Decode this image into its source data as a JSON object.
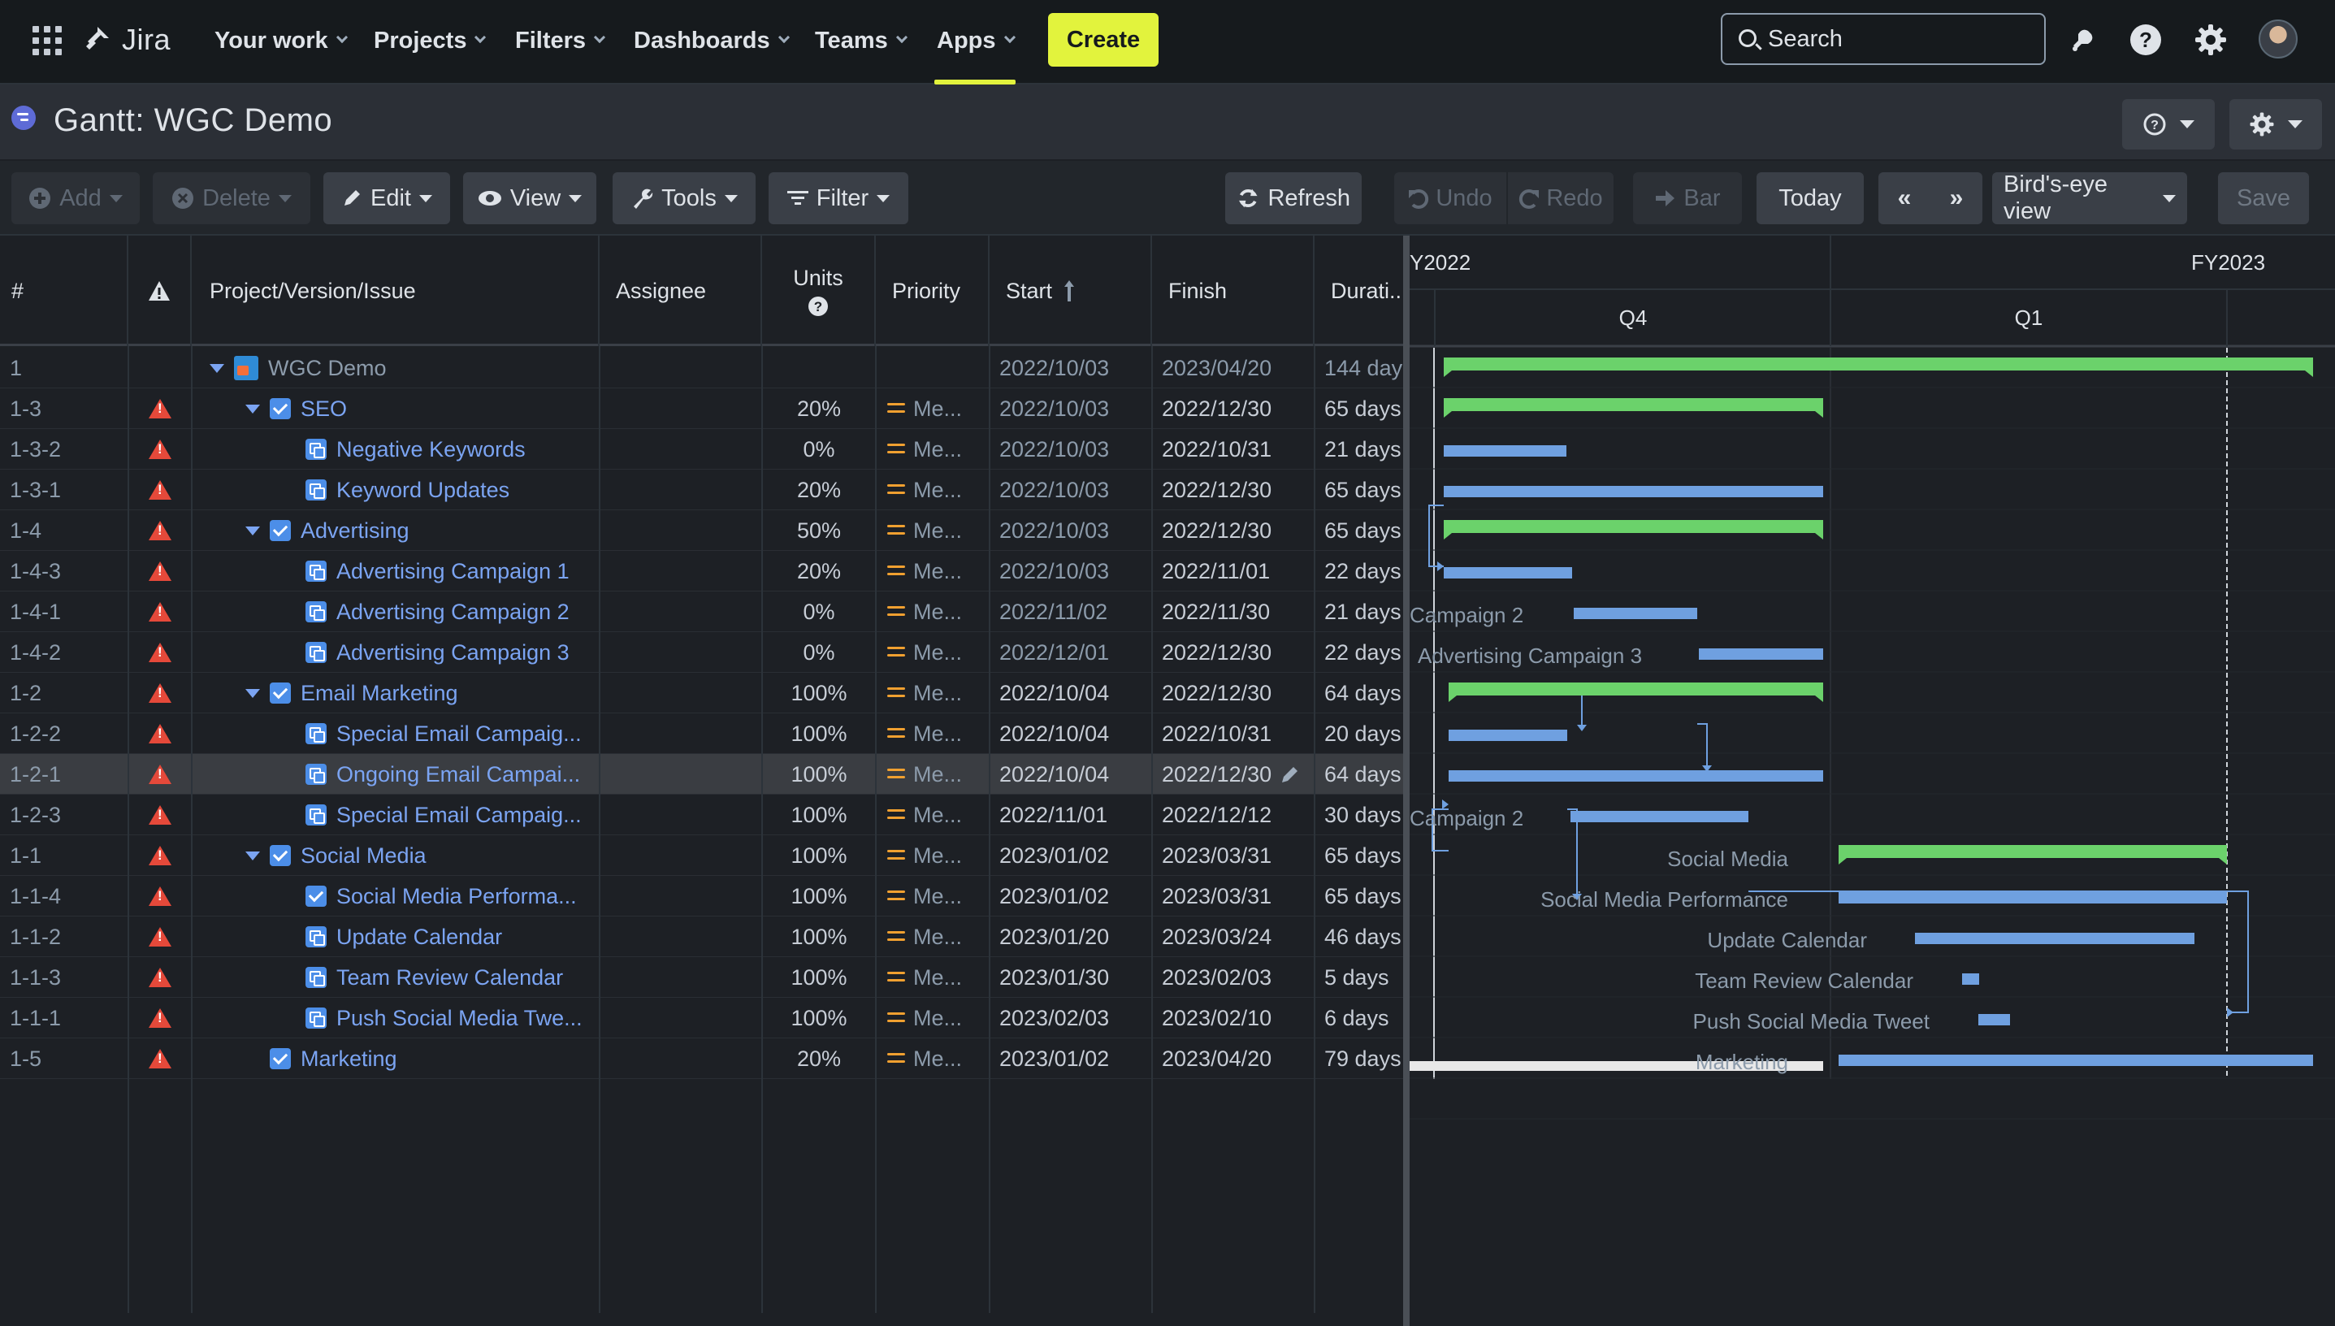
{
  "topnav": {
    "logo": "Jira",
    "items": [
      "Your work",
      "Projects",
      "Filters",
      "Dashboards",
      "Teams",
      "Apps"
    ],
    "create": "Create",
    "search_placeholder": "Search"
  },
  "title": {
    "prefix": "Gantt:",
    "name": "WGC Demo"
  },
  "toolbar": {
    "add": "Add",
    "delete": "Delete",
    "edit": "Edit",
    "view": "View",
    "tools": "Tools",
    "filter": "Filter",
    "refresh": "Refresh",
    "undo": "Undo",
    "redo": "Redo",
    "bar": "Bar",
    "today": "Today",
    "birds_eye": "Bird's-eye view",
    "save": "Save"
  },
  "columns": {
    "num": "#",
    "issue": "Project/Version/Issue",
    "assignee": "Assignee",
    "units": "Units",
    "priority": "Priority",
    "start": "Start",
    "finish": "Finish",
    "duration": "Durati..."
  },
  "timeline": {
    "fy_left": "Y2022",
    "fy_right": "FY2023",
    "q_left": "Q4",
    "q_right": "Q1"
  },
  "rows": [
    {
      "id": "1",
      "name": "WGC Demo",
      "units": "",
      "priority": "",
      "start": "2022/10/03",
      "finish": "2023/04/20",
      "dur": "144 day"
    },
    {
      "id": "1-3",
      "name": "SEO",
      "units": "20%",
      "priority": "Me...",
      "start": "2022/10/03",
      "finish": "2022/12/30",
      "dur": "65 days"
    },
    {
      "id": "1-3-2",
      "name": "Negative Keywords",
      "units": "0%",
      "priority": "Me...",
      "start": "2022/10/03",
      "finish": "2022/10/31",
      "dur": "21 days"
    },
    {
      "id": "1-3-1",
      "name": "Keyword Updates",
      "units": "20%",
      "priority": "Me...",
      "start": "2022/10/03",
      "finish": "2022/12/30",
      "dur": "65 days"
    },
    {
      "id": "1-4",
      "name": "Advertising",
      "units": "50%",
      "priority": "Me...",
      "start": "2022/10/03",
      "finish": "2022/12/30",
      "dur": "65 days"
    },
    {
      "id": "1-4-3",
      "name": "Advertising Campaign 1",
      "units": "20%",
      "priority": "Me...",
      "start": "2022/10/03",
      "finish": "2022/11/01",
      "dur": "22 days"
    },
    {
      "id": "1-4-1",
      "name": "Advertising Campaign 2",
      "units": "0%",
      "priority": "Me...",
      "start": "2022/11/02",
      "finish": "2022/11/30",
      "dur": "21 days"
    },
    {
      "id": "1-4-2",
      "name": "Advertising Campaign 3",
      "units": "0%",
      "priority": "Me...",
      "start": "2022/12/01",
      "finish": "2022/12/30",
      "dur": "22 days"
    },
    {
      "id": "1-2",
      "name": "Email Marketing",
      "units": "100%",
      "priority": "Me...",
      "start": "2022/10/04",
      "finish": "2022/12/30",
      "dur": "64 days"
    },
    {
      "id": "1-2-2",
      "name": "Special Email Campaig...",
      "units": "100%",
      "priority": "Me...",
      "start": "2022/10/04",
      "finish": "2022/10/31",
      "dur": "20 days"
    },
    {
      "id": "1-2-1",
      "name": "Ongoing Email Campai...",
      "units": "100%",
      "priority": "Me...",
      "start": "2022/10/04",
      "finish": "2022/12/30",
      "dur": "64 days"
    },
    {
      "id": "1-2-3",
      "name": "Special Email Campaig...",
      "units": "100%",
      "priority": "Me...",
      "start": "2022/11/01",
      "finish": "2022/12/12",
      "dur": "30 days"
    },
    {
      "id": "1-1",
      "name": "Social Media",
      "units": "100%",
      "priority": "Me...",
      "start": "2023/01/02",
      "finish": "2023/03/31",
      "dur": "65 days"
    },
    {
      "id": "1-1-4",
      "name": "Social Media Performa...",
      "units": "100%",
      "priority": "Me...",
      "start": "2023/01/02",
      "finish": "2023/03/31",
      "dur": "65 days"
    },
    {
      "id": "1-1-2",
      "name": "Update Calendar",
      "units": "100%",
      "priority": "Me...",
      "start": "2023/01/20",
      "finish": "2023/03/24",
      "dur": "46 days"
    },
    {
      "id": "1-1-3",
      "name": "Team Review Calendar",
      "units": "100%",
      "priority": "Me...",
      "start": "2023/01/30",
      "finish": "2023/02/03",
      "dur": "5 days"
    },
    {
      "id": "1-1-1",
      "name": "Push Social Media Twe...",
      "units": "100%",
      "priority": "Me...",
      "start": "2023/02/03",
      "finish": "2023/02/10",
      "dur": "6 days"
    },
    {
      "id": "1-5",
      "name": "Marketing",
      "units": "20%",
      "priority": "Me...",
      "start": "2023/01/02",
      "finish": "2023/04/20",
      "dur": "79 days"
    }
  ],
  "gantt_labels": {
    "r6": "Campaign 2",
    "r7": "Advertising Campaign 3",
    "r11": "Campaign 2",
    "r12": "Social Media",
    "r13": "Social Media Performance",
    "r14": "Update Calendar",
    "r15": "Team Review Calendar",
    "r16": "Push Social Media Tweet",
    "r17": "Marketing"
  },
  "colors": {
    "summary_bar": "#6bd26b",
    "task_bar": "#6fa0e0",
    "accent": "#e2f33d",
    "warning": "#e5493a"
  }
}
